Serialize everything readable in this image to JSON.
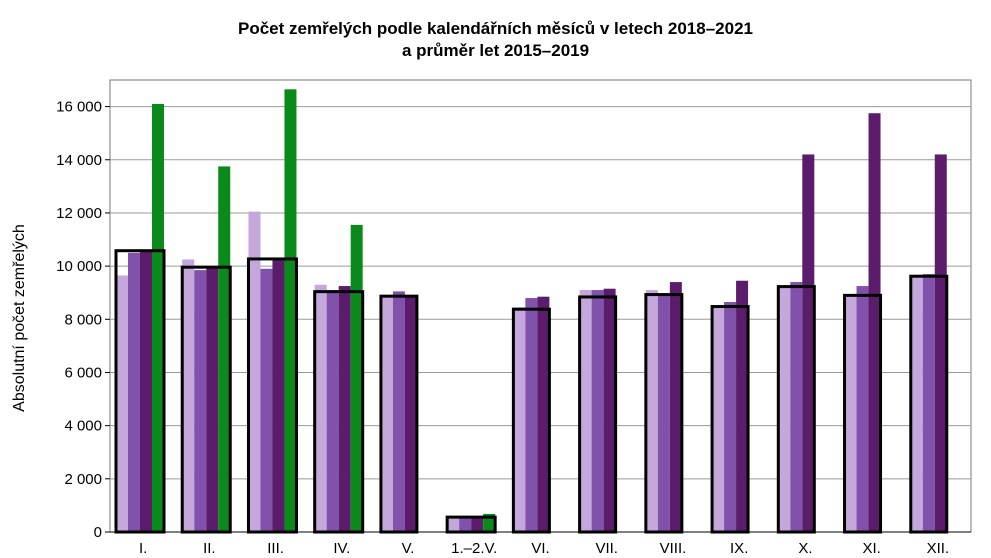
{
  "chart_data": {
    "type": "bar",
    "title_line1": "Počet zemřelých podle kalendářních měsíců v letech 2018–2021",
    "title_line2": "a průměr let 2015–2019",
    "ylabel": "Absolutní počet zemřelých",
    "xlabel": "",
    "ylim": [
      0,
      17000
    ],
    "yticks": [
      0,
      2000,
      4000,
      6000,
      8000,
      10000,
      12000,
      14000,
      16000
    ],
    "ytick_labels": [
      "0",
      "2 000",
      "4 000",
      "6 000",
      "8 000",
      "10 000",
      "12 000",
      "14 000",
      "16 000"
    ],
    "grid": true,
    "categories": [
      "I.",
      "II.",
      "III.",
      "IV.",
      "V.",
      "1.–2.V.",
      "VI.",
      "VII.",
      "VIII.",
      "IX.",
      "X.",
      "XI.",
      "XII."
    ],
    "series": [
      {
        "color": "#c4a8dc",
        "values": [
          9650,
          10250,
          12050,
          9300,
          8900,
          550,
          8450,
          9100,
          9100,
          8500,
          9200,
          8900,
          9650
        ]
      },
      {
        "color": "#8052ac",
        "values": [
          10500,
          9850,
          9900,
          9100,
          9050,
          570,
          8800,
          9100,
          8950,
          8650,
          9400,
          9250,
          9700
        ]
      },
      {
        "color": "#5c1c6c",
        "values": [
          10550,
          9950,
          10250,
          9250,
          8900,
          560,
          8850,
          9150,
          9400,
          9450,
          14200,
          15750,
          14200
        ]
      },
      {
        "color": "#0b8a1c",
        "values": [
          16100,
          13750,
          16650,
          11550,
          null,
          680,
          null,
          null,
          null,
          null,
          null,
          null,
          null
        ]
      }
    ],
    "average_2015_2019": [
      10580,
      9960,
      10270,
      9040,
      8870,
      560,
      8380,
      8840,
      8930,
      8480,
      9230,
      8900,
      9620
    ]
  }
}
